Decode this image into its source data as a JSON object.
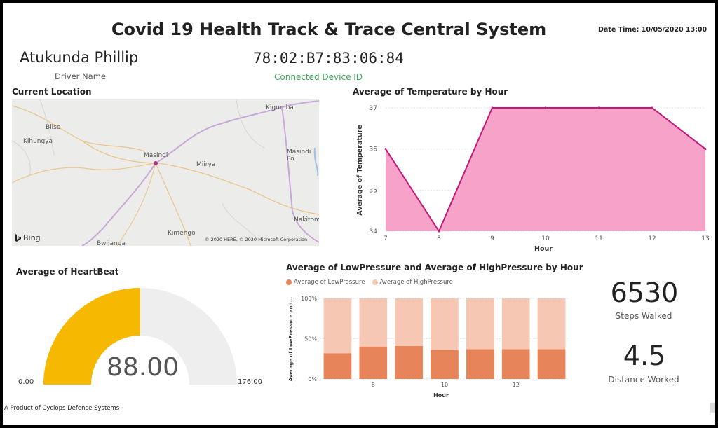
{
  "header": {
    "title": "Covid 19 Health Track & Trace Central System",
    "datetime": "Date Time: 10/05/2020 13:00"
  },
  "driver": {
    "name": "Atukunda Phillip",
    "name_label": "Driver Name",
    "device_id": "78:02:B7:83:06:84",
    "device_label": "Connected Device ID"
  },
  "map": {
    "title": "Current Location",
    "places": [
      "Kigumba",
      "Biiso",
      "Kihungya",
      "Masindi",
      "Miirya",
      "Masindi Po",
      "Nakitom",
      "Kimengo",
      "Bwijanga"
    ],
    "bing_label": "Bing",
    "copyright": "© 2020 HERE, © 2020 Microsoft Corporation",
    "marker_color": "#b0307a"
  },
  "temperature_chart": {
    "title": "Average of Temperature by Hour",
    "chart_data": {
      "type": "area",
      "x": [
        7,
        8,
        9,
        10,
        11,
        12,
        13
      ],
      "y": [
        36,
        34,
        37,
        37,
        37,
        37,
        36
      ],
      "xlabel": "Hour",
      "ylabel": "Average of Temperature",
      "xticks": [
        "7",
        "8",
        "9",
        "10",
        "11",
        "12",
        "13"
      ],
      "yticks": [
        "34",
        "35",
        "36",
        "37"
      ],
      "xlim": [
        7,
        13
      ],
      "ylim": [
        34,
        37
      ],
      "fill_color": "#f7a2c9",
      "line_color": "#c2187a"
    }
  },
  "heartbeat_gauge": {
    "title": "Average of HeartBeat",
    "value_label": "88.00",
    "min_label": "0.00",
    "max_label": "176.00",
    "value": 88,
    "min": 0,
    "max": 176,
    "fill_color": "#f6b800",
    "track_color": "#efeeee"
  },
  "pressure_chart": {
    "title": "Average of LowPressure and Average of HighPressure by Hour",
    "chart_data": {
      "type": "bar",
      "stacked_percent": true,
      "x": [
        7,
        8,
        9,
        10,
        11,
        12,
        13
      ],
      "xticks": [
        "8",
        "10",
        "12"
      ],
      "yticks": [
        "0%",
        "50%",
        "100%"
      ],
      "xlabel": "Hour",
      "ylabel": "Average of LowPressure and...",
      "series": [
        {
          "name": "Average of LowPressure",
          "values": [
            32,
            40,
            41,
            36,
            37,
            37,
            37
          ],
          "color": "#e8845a"
        },
        {
          "name": "Average of HighPressure",
          "values": [
            68,
            60,
            59,
            64,
            63,
            63,
            63
          ],
          "color": "#f6c8b4"
        }
      ],
      "ylim": [
        0,
        100
      ],
      "legend": "top-left"
    }
  },
  "kpis": {
    "steps_value": "6530",
    "steps_label": "Steps Walked",
    "distance_value": "4.5",
    "distance_label": "Distance Worked"
  },
  "footer": {
    "text": "A Product of Cyclops Defence Systems"
  }
}
